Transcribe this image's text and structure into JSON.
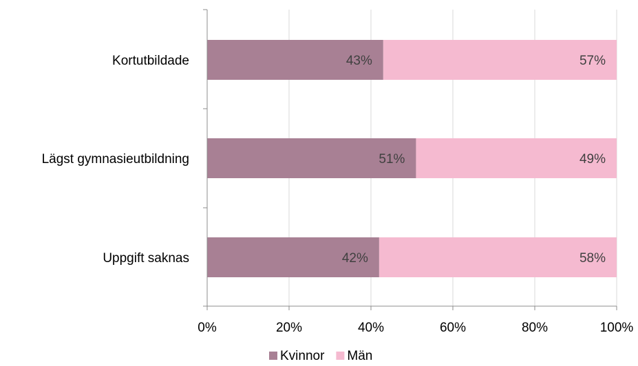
{
  "chart_data": {
    "type": "bar",
    "orientation": "horizontal",
    "stacked": true,
    "categories": [
      "Kortutbildade",
      "Lägst gymnasieutbildning",
      "Uppgift saknas"
    ],
    "series": [
      {
        "name": "Kvinnor",
        "values": [
          43,
          51,
          42
        ],
        "color": "#a88094"
      },
      {
        "name": "Män",
        "values": [
          57,
          49,
          58
        ],
        "color": "#f5bad0"
      }
    ],
    "value_labels": [
      [
        "43%",
        "51%",
        "42%"
      ],
      [
        "57%",
        "49%",
        "58%"
      ]
    ],
    "x_ticks": [
      0,
      20,
      40,
      60,
      80,
      100
    ],
    "x_tick_labels": [
      "0%",
      "20%",
      "40%",
      "60%",
      "80%",
      "100%"
    ],
    "xlim": [
      0,
      100
    ],
    "grid": true,
    "legend_position": "bottom",
    "title": "",
    "xlabel": "",
    "ylabel": ""
  }
}
